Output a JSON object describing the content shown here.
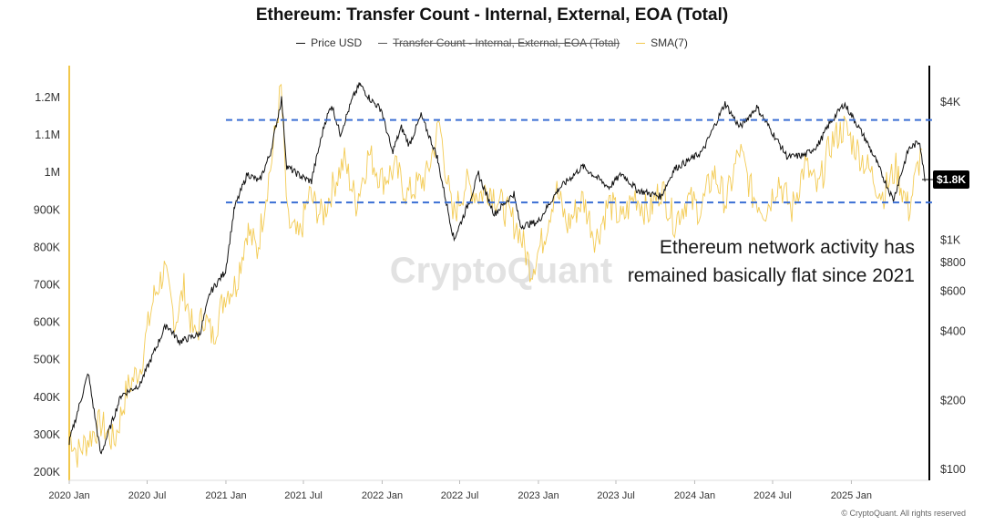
{
  "chart_data": {
    "type": "line",
    "title": "Ethereum: Transfer Count - Internal, External, EOA (Total)",
    "legend": [
      {
        "name": "Price USD",
        "color": "#111111",
        "hidden": false
      },
      {
        "name": "Transfer Count - Internal, External, EOA (Total)",
        "color": "#555555",
        "hidden": true
      },
      {
        "name": "SMA(7)",
        "color": "#f2c84b",
        "hidden": false
      }
    ],
    "x_ticks": [
      "2020 Jan",
      "2020 Jul",
      "2021 Jan",
      "2021 Jul",
      "2022 Jan",
      "2022 Jul",
      "2023 Jan",
      "2023 Jul",
      "2024 Jan",
      "2024 Jul",
      "2025 Jan"
    ],
    "y_left_ticks": [
      "1.2M",
      "1.1M",
      "1M",
      "900K",
      "800K",
      "700K",
      "600K",
      "500K",
      "400K",
      "300K",
      "200K"
    ],
    "y_left_range": [
      200000,
      1200000
    ],
    "y_right_ticks": [
      "$4K",
      "$1K",
      "$800",
      "$600",
      "$400",
      "$200",
      "$100"
    ],
    "y_right_scale": "log",
    "current_price_label": "$1.8K",
    "x_range": [
      "2020-01-01",
      "2025-06-30"
    ],
    "series": [
      {
        "name": "Price USD",
        "axis": "right",
        "points": [
          [
            "2020-01-01",
            130
          ],
          [
            "2020-02-15",
            265
          ],
          [
            "2020-03-15",
            115
          ],
          [
            "2020-05-01",
            210
          ],
          [
            "2020-06-15",
            235
          ],
          [
            "2020-08-15",
            430
          ],
          [
            "2020-09-15",
            360
          ],
          [
            "2020-11-01",
            390
          ],
          [
            "2020-11-25",
            590
          ],
          [
            "2020-12-31",
            735
          ],
          [
            "2021-01-20",
            1350
          ],
          [
            "2021-02-20",
            1950
          ],
          [
            "2021-03-20",
            1800
          ],
          [
            "2021-04-15",
            2400
          ],
          [
            "2021-05-11",
            4150
          ],
          [
            "2021-05-23",
            2100
          ],
          [
            "2021-06-25",
            1900
          ],
          [
            "2021-07-20",
            1800
          ],
          [
            "2021-08-20",
            3250
          ],
          [
            "2021-09-05",
            3900
          ],
          [
            "2021-09-25",
            2900
          ],
          [
            "2021-10-25",
            4200
          ],
          [
            "2021-11-10",
            4800
          ],
          [
            "2021-12-05",
            4100
          ],
          [
            "2021-12-31",
            3700
          ],
          [
            "2022-01-25",
            2400
          ],
          [
            "2022-02-15",
            3100
          ],
          [
            "2022-03-05",
            2600
          ],
          [
            "2022-04-02",
            3500
          ],
          [
            "2022-05-10",
            2300
          ],
          [
            "2022-06-18",
            1000
          ],
          [
            "2022-07-25",
            1500
          ],
          [
            "2022-08-14",
            1950
          ],
          [
            "2022-09-20",
            1300
          ],
          [
            "2022-11-05",
            1600
          ],
          [
            "2022-11-20",
            1150
          ],
          [
            "2022-12-31",
            1200
          ],
          [
            "2023-02-15",
            1650
          ],
          [
            "2023-04-15",
            2100
          ],
          [
            "2023-06-15",
            1700
          ],
          [
            "2023-07-15",
            1950
          ],
          [
            "2023-08-20",
            1650
          ],
          [
            "2023-10-15",
            1550
          ],
          [
            "2023-11-15",
            2050
          ],
          [
            "2023-12-31",
            2300
          ],
          [
            "2024-01-20",
            2450
          ],
          [
            "2024-03-12",
            3950
          ],
          [
            "2024-04-15",
            3100
          ],
          [
            "2024-05-25",
            3800
          ],
          [
            "2024-08-05",
            2300
          ],
          [
            "2024-09-15",
            2350
          ],
          [
            "2024-10-15",
            2600
          ],
          [
            "2024-11-10",
            3200
          ],
          [
            "2024-12-16",
            3950
          ],
          [
            "2025-01-10",
            3300
          ],
          [
            "2025-02-03",
            2750
          ],
          [
            "2025-03-01",
            2200
          ],
          [
            "2025-04-09",
            1500
          ],
          [
            "2025-05-15",
            2500
          ],
          [
            "2025-06-10",
            2700
          ],
          [
            "2025-06-22",
            1800
          ]
        ]
      },
      {
        "name": "SMA(7)",
        "axis": "left",
        "points": [
          [
            "2020-01-01",
            310000
          ],
          [
            "2020-01-20",
            250000
          ],
          [
            "2020-03-15",
            330000
          ],
          [
            "2020-04-15",
            280000
          ],
          [
            "2020-05-15",
            420000
          ],
          [
            "2020-06-15",
            480000
          ],
          [
            "2020-07-15",
            660000
          ],
          [
            "2020-08-10",
            740000
          ],
          [
            "2020-09-05",
            600000
          ],
          [
            "2020-09-25",
            690000
          ],
          [
            "2020-10-20",
            560000
          ],
          [
            "2020-11-10",
            620000
          ],
          [
            "2020-12-01",
            560000
          ],
          [
            "2020-12-31",
            680000
          ],
          [
            "2021-01-25",
            700000
          ],
          [
            "2021-02-20",
            850000
          ],
          [
            "2021-03-15",
            790000
          ],
          [
            "2021-04-15",
            1010000
          ],
          [
            "2021-05-10",
            1220000
          ],
          [
            "2021-05-25",
            870000
          ],
          [
            "2021-06-20",
            820000
          ],
          [
            "2021-07-15",
            940000
          ],
          [
            "2021-08-15",
            880000
          ],
          [
            "2021-09-10",
            970000
          ],
          [
            "2021-10-05",
            1030000
          ],
          [
            "2021-11-01",
            920000
          ],
          [
            "2021-12-01",
            1050000
          ],
          [
            "2022-01-01",
            980000
          ],
          [
            "2022-02-01",
            1010000
          ],
          [
            "2022-03-01",
            940000
          ],
          [
            "2022-04-15",
            990000
          ],
          [
            "2022-05-15",
            1130000
          ],
          [
            "2022-06-15",
            880000
          ],
          [
            "2022-07-15",
            970000
          ],
          [
            "2022-08-15",
            940000
          ],
          [
            "2022-09-10",
            960000
          ],
          [
            "2022-10-15",
            900000
          ],
          [
            "2022-11-15",
            850000
          ],
          [
            "2022-12-15",
            740000
          ],
          [
            "2023-01-15",
            830000
          ],
          [
            "2023-02-10",
            960000
          ],
          [
            "2023-03-10",
            860000
          ],
          [
            "2023-04-15",
            930000
          ],
          [
            "2023-05-15",
            820000
          ],
          [
            "2023-06-15",
            920000
          ],
          [
            "2023-07-15",
            870000
          ],
          [
            "2023-08-15",
            940000
          ],
          [
            "2023-09-15",
            890000
          ],
          [
            "2023-10-15",
            960000
          ],
          [
            "2023-11-15",
            870000
          ],
          [
            "2023-12-15",
            930000
          ],
          [
            "2024-01-15",
            900000
          ],
          [
            "2024-02-15",
            1000000
          ],
          [
            "2024-03-15",
            920000
          ],
          [
            "2024-04-15",
            1060000
          ],
          [
            "2024-05-15",
            940000
          ],
          [
            "2024-06-15",
            900000
          ],
          [
            "2024-07-15",
            980000
          ],
          [
            "2024-08-15",
            900000
          ],
          [
            "2024-09-15",
            1020000
          ],
          [
            "2024-10-15",
            950000
          ],
          [
            "2024-11-15",
            1080000
          ],
          [
            "2024-12-15",
            1120000
          ],
          [
            "2025-01-15",
            1060000
          ],
          [
            "2025-02-15",
            1000000
          ],
          [
            "2025-03-15",
            940000
          ],
          [
            "2025-04-15",
            1010000
          ],
          [
            "2025-05-15",
            900000
          ],
          [
            "2025-06-15",
            1060000
          ]
        ]
      }
    ],
    "reference_lines": [
      {
        "axis": "left",
        "value": 1140000,
        "from": "2021-01-01",
        "to": "2025-06-30",
        "color": "#3b6fd4",
        "style": "dashed"
      },
      {
        "axis": "left",
        "value": 920000,
        "from": "2021-01-01",
        "to": "2025-06-30",
        "color": "#3b6fd4",
        "style": "dashed"
      }
    ],
    "highlight_bars": [
      {
        "axis": "left",
        "position": "left edge",
        "color": "#f2c84b"
      },
      {
        "axis": "right",
        "position": "right edge",
        "color": "#000000"
      }
    ],
    "annotation": "Ethereum network activity has remained basically flat since 2021",
    "watermark": "CryptoQuant",
    "copyright": "© CryptoQuant. All rights reserved",
    "grid": false
  }
}
